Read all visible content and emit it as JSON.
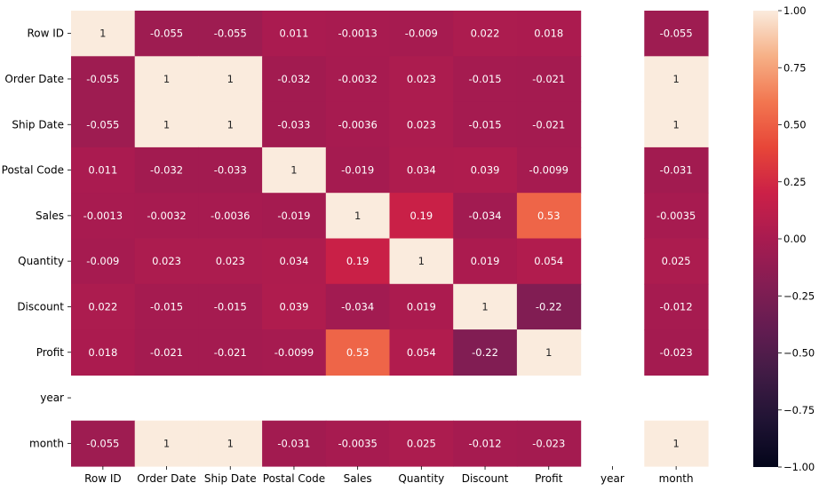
{
  "chart_data": {
    "type": "heatmap",
    "title": "",
    "xlabel": "",
    "ylabel": "",
    "x_labels": [
      "Row ID",
      "Order Date",
      "Ship Date",
      "Postal Code",
      "Sales",
      "Quantity",
      "Discount",
      "Profit",
      "year",
      "month"
    ],
    "y_labels": [
      "Row ID",
      "Order Date",
      "Ship Date",
      "Postal Code",
      "Sales",
      "Quantity",
      "Discount",
      "Profit",
      "year",
      "month"
    ],
    "values": [
      [
        1,
        -0.055,
        -0.055,
        0.011,
        -0.0013,
        -0.009,
        0.022,
        0.018,
        null,
        -0.055
      ],
      [
        -0.055,
        1,
        1,
        -0.032,
        -0.0032,
        0.023,
        -0.015,
        -0.021,
        null,
        1
      ],
      [
        -0.055,
        1,
        1,
        -0.033,
        -0.0036,
        0.023,
        -0.015,
        -0.021,
        null,
        1
      ],
      [
        0.011,
        -0.032,
        -0.033,
        1,
        -0.019,
        0.034,
        0.039,
        -0.0099,
        null,
        -0.031
      ],
      [
        -0.0013,
        -0.0032,
        -0.0036,
        -0.019,
        1,
        0.19,
        -0.034,
        0.53,
        null,
        -0.0035
      ],
      [
        -0.009,
        0.023,
        0.023,
        0.034,
        0.19,
        1,
        0.019,
        0.054,
        null,
        0.025
      ],
      [
        0.022,
        -0.015,
        -0.015,
        0.039,
        -0.034,
        0.019,
        1,
        -0.22,
        null,
        -0.012
      ],
      [
        0.018,
        -0.021,
        -0.021,
        -0.0099,
        0.53,
        0.054,
        -0.22,
        1,
        null,
        -0.023
      ],
      [
        null,
        null,
        null,
        null,
        null,
        null,
        null,
        null,
        null,
        null
      ],
      [
        -0.055,
        1,
        1,
        -0.031,
        -0.0035,
        0.025,
        -0.012,
        -0.023,
        null,
        1
      ]
    ],
    "annotations": [
      [
        "1",
        "-0.055",
        "-0.055",
        "0.011",
        "-0.0013",
        "-0.009",
        "0.022",
        "0.018",
        "",
        "-0.055"
      ],
      [
        "-0.055",
        "1",
        "1",
        "-0.032",
        "-0.0032",
        "0.023",
        "-0.015",
        "-0.021",
        "",
        "1"
      ],
      [
        "-0.055",
        "1",
        "1",
        "-0.033",
        "-0.0036",
        "0.023",
        "-0.015",
        "-0.021",
        "",
        "1"
      ],
      [
        "0.011",
        "-0.032",
        "-0.033",
        "1",
        "-0.019",
        "0.034",
        "0.039",
        "-0.0099",
        "",
        "-0.031"
      ],
      [
        "-0.0013",
        "-0.0032",
        "-0.0036",
        "-0.019",
        "1",
        "0.19",
        "-0.034",
        "0.53",
        "",
        "-0.0035"
      ],
      [
        "-0.009",
        "0.023",
        "0.023",
        "0.034",
        "0.19",
        "1",
        "0.019",
        "0.054",
        "",
        "0.025"
      ],
      [
        "0.022",
        "-0.015",
        "-0.015",
        "0.039",
        "-0.034",
        "0.019",
        "1",
        "-0.22",
        "",
        "-0.012"
      ],
      [
        "0.018",
        "-0.021",
        "-0.021",
        "-0.0099",
        "0.53",
        "0.054",
        "-0.22",
        "1",
        "",
        "-0.023"
      ],
      [
        "",
        "",
        "",
        "",
        "",
        "",
        "",
        "",
        "",
        ""
      ],
      [
        "-0.055",
        "1",
        "1",
        "-0.031",
        "-0.0035",
        "0.025",
        "-0.012",
        "-0.023",
        "",
        "1"
      ]
    ],
    "colorbar": {
      "range": [
        -1,
        1
      ],
      "ticks": [
        "1.00",
        "0.75",
        "0.50",
        "0.25",
        "0.00",
        "−0.25",
        "−0.50",
        "−0.75",
        "−1.00"
      ],
      "colormap": "rocket"
    },
    "grid": false,
    "legend": "colorbar-right"
  }
}
